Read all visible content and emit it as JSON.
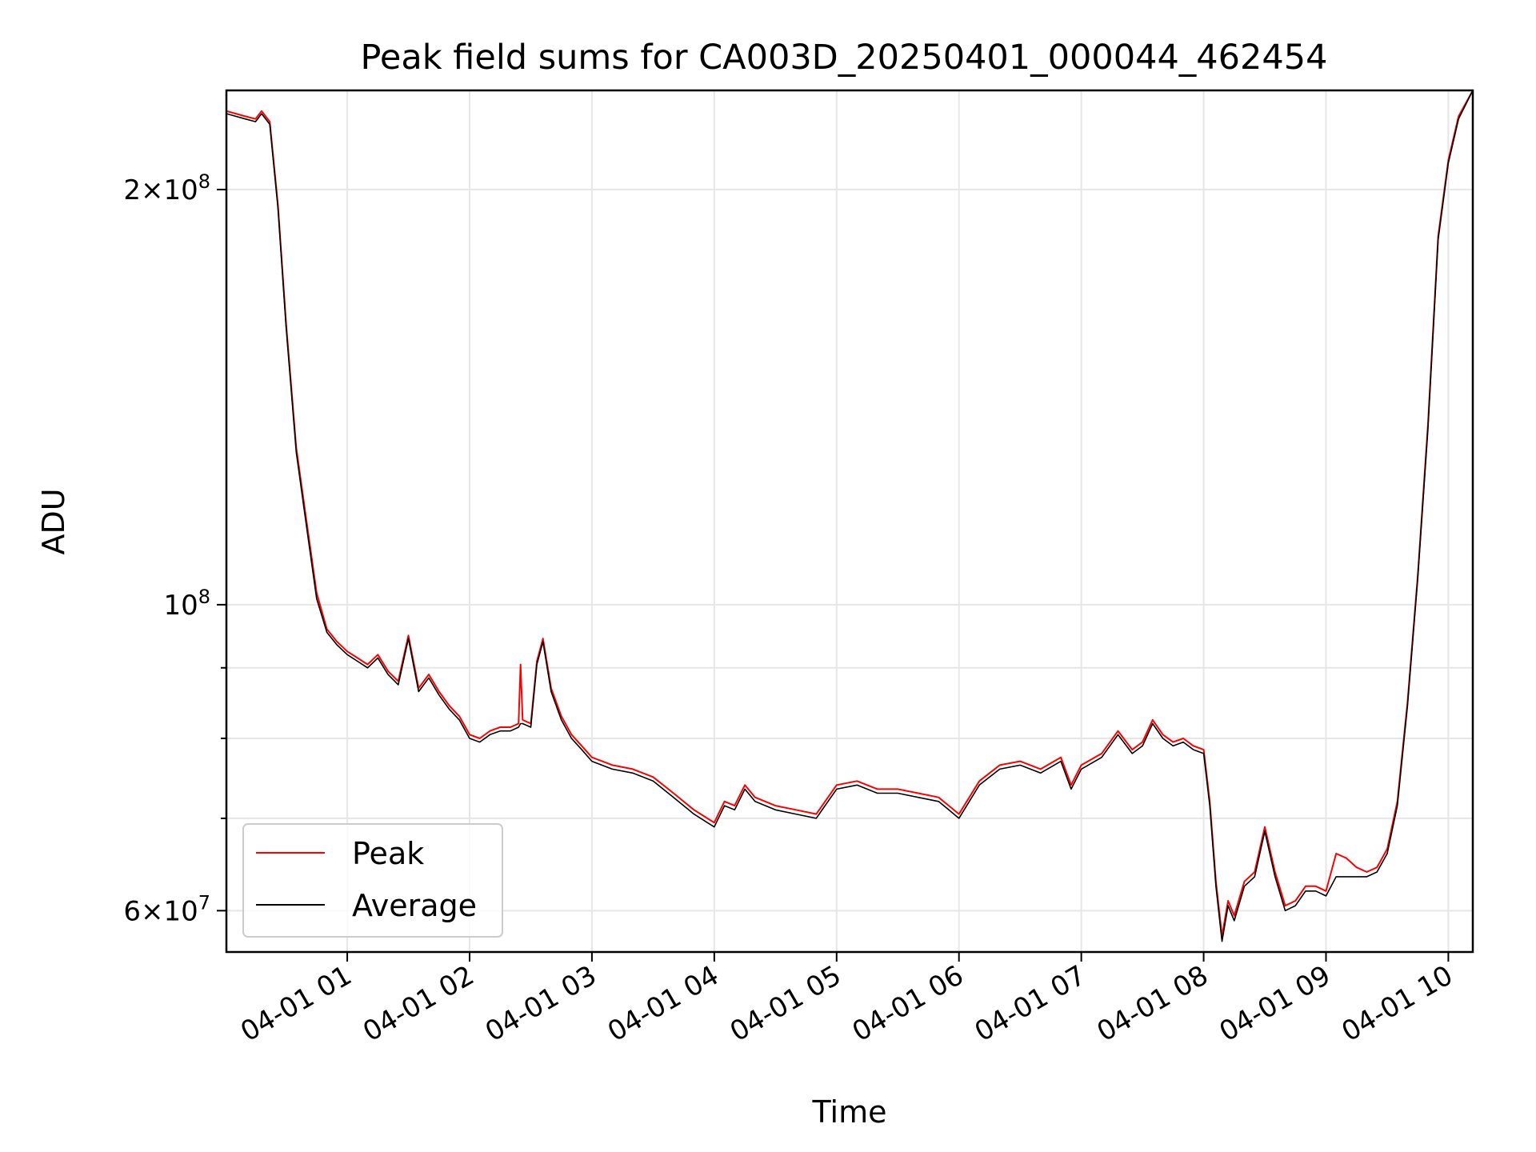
{
  "chart_data": {
    "type": "line",
    "title": "Peak field sums for CA003D_20250401_000044_462454",
    "xlabel": "Time",
    "ylabel": "ADU",
    "yscale": "log",
    "ylim": [
      56000000,
      236000000
    ],
    "xlim": [
      "2025-04-01 00:00:44",
      "2025-04-01 10:12:00"
    ],
    "grid": true,
    "legend_position": "lower-left",
    "x_ticks": [
      "2025-04-01 01:00",
      "2025-04-01 02:00",
      "2025-04-01 03:00",
      "2025-04-01 04:00",
      "2025-04-01 05:00",
      "2025-04-01 06:00",
      "2025-04-01 07:00",
      "2025-04-01 08:00",
      "2025-04-01 09:00",
      "2025-04-01 10:00"
    ],
    "x_tick_labels": [
      "04-01 01",
      "04-01 02",
      "04-01 03",
      "04-01 04",
      "04-01 05",
      "04-01 06",
      "04-01 07",
      "04-01 08",
      "04-01 09",
      "04-01 10"
    ],
    "y_major_ticks": [
      {
        "value": 60000000,
        "mantissa": "6",
        "exp": "7"
      },
      {
        "value": 100000000,
        "mantissa": "",
        "exp": "8"
      },
      {
        "value": 200000000,
        "mantissa": "2",
        "exp": "8"
      }
    ],
    "y_minor_ticks": [
      70000000,
      80000000,
      90000000
    ],
    "series": [
      {
        "name": "Peak",
        "color": "#ff0000",
        "x": [
          "2025-04-01 00:00:44",
          "2025-04-01 00:10",
          "2025-04-01 00:15",
          "2025-04-01 00:18",
          "2025-04-01 00:22",
          "2025-04-01 00:26",
          "2025-04-01 00:30",
          "2025-04-01 00:35",
          "2025-04-01 00:40",
          "2025-04-01 00:45",
          "2025-04-01 00:50",
          "2025-04-01 00:55",
          "2025-04-01 01:00",
          "2025-04-01 01:05",
          "2025-04-01 01:10",
          "2025-04-01 01:15",
          "2025-04-01 01:20",
          "2025-04-01 01:25",
          "2025-04-01 01:30",
          "2025-04-01 01:35",
          "2025-04-01 01:40",
          "2025-04-01 01:45",
          "2025-04-01 01:50",
          "2025-04-01 01:55",
          "2025-04-01 02:00",
          "2025-04-01 02:05",
          "2025-04-01 02:10",
          "2025-04-01 02:15",
          "2025-04-01 02:20",
          "2025-04-01 02:24",
          "2025-04-01 02:25",
          "2025-04-01 02:26",
          "2025-04-01 02:30",
          "2025-04-01 02:33",
          "2025-04-01 02:36",
          "2025-04-01 02:40",
          "2025-04-01 02:45",
          "2025-04-01 02:50",
          "2025-04-01 02:55",
          "2025-04-01 03:00",
          "2025-04-01 03:10",
          "2025-04-01 03:20",
          "2025-04-01 03:30",
          "2025-04-01 03:40",
          "2025-04-01 03:50",
          "2025-04-01 04:00",
          "2025-04-01 04:05",
          "2025-04-01 04:10",
          "2025-04-01 04:15",
          "2025-04-01 04:20",
          "2025-04-01 04:30",
          "2025-04-01 04:40",
          "2025-04-01 04:50",
          "2025-04-01 05:00",
          "2025-04-01 05:10",
          "2025-04-01 05:20",
          "2025-04-01 05:30",
          "2025-04-01 05:40",
          "2025-04-01 05:50",
          "2025-04-01 05:55",
          "2025-04-01 06:00",
          "2025-04-01 06:10",
          "2025-04-01 06:20",
          "2025-04-01 06:30",
          "2025-04-01 06:40",
          "2025-04-01 06:50",
          "2025-04-01 06:55",
          "2025-04-01 07:00",
          "2025-04-01 07:10",
          "2025-04-01 07:18",
          "2025-04-01 07:25",
          "2025-04-01 07:30",
          "2025-04-01 07:35",
          "2025-04-01 07:40",
          "2025-04-01 07:45",
          "2025-04-01 07:50",
          "2025-04-01 07:55",
          "2025-04-01 08:00",
          "2025-04-01 08:03",
          "2025-04-01 08:06",
          "2025-04-01 08:09",
          "2025-04-01 08:12",
          "2025-04-01 08:15",
          "2025-04-01 08:20",
          "2025-04-01 08:25",
          "2025-04-01 08:30",
          "2025-04-01 08:35",
          "2025-04-01 08:40",
          "2025-04-01 08:45",
          "2025-04-01 08:50",
          "2025-04-01 08:55",
          "2025-04-01 09:00",
          "2025-04-01 09:05",
          "2025-04-01 09:10",
          "2025-04-01 09:15",
          "2025-04-01 09:20",
          "2025-04-01 09:25",
          "2025-04-01 09:30",
          "2025-04-01 09:35",
          "2025-04-01 09:40",
          "2025-04-01 09:45",
          "2025-04-01 09:50",
          "2025-04-01 09:55",
          "2025-04-01 10:00",
          "2025-04-01 10:05",
          "2025-04-01 10:12"
        ],
        "values": [
          228000000,
          226000000,
          225000000,
          228000000,
          224000000,
          195000000,
          160000000,
          130000000,
          115000000,
          102000000,
          96000000,
          94000000,
          92500000,
          91500000,
          90500000,
          92000000,
          89500000,
          88000000,
          95000000,
          87000000,
          89000000,
          86500000,
          84500000,
          83000000,
          80500000,
          80000000,
          81000000,
          81500000,
          81500000,
          82000000,
          90500000,
          82500000,
          82000000,
          91000000,
          94500000,
          87000000,
          83000000,
          80500000,
          79000000,
          77500000,
          76500000,
          76000000,
          75000000,
          73000000,
          71000000,
          69500000,
          72000000,
          71500000,
          74000000,
          72500000,
          71500000,
          71000000,
          70500000,
          74000000,
          74500000,
          73500000,
          73500000,
          73000000,
          72500000,
          71500000,
          70500000,
          74500000,
          76500000,
          77000000,
          76000000,
          77500000,
          74000000,
          76500000,
          78000000,
          81000000,
          78500000,
          79500000,
          82500000,
          80500000,
          79500000,
          80000000,
          79000000,
          78500000,
          72000000,
          63000000,
          57500000,
          61000000,
          59500000,
          63000000,
          64000000,
          69000000,
          64000000,
          60500000,
          61000000,
          62500000,
          62500000,
          62000000,
          66000000,
          65500000,
          64500000,
          64000000,
          64500000,
          66500000,
          72000000,
          85000000,
          105000000,
          135000000,
          185000000,
          210000000,
          226000000,
          236000000
        ]
      },
      {
        "name": "Average",
        "color": "#000000",
        "x": [
          "2025-04-01 00:00:44",
          "2025-04-01 00:10",
          "2025-04-01 00:15",
          "2025-04-01 00:18",
          "2025-04-01 00:22",
          "2025-04-01 00:26",
          "2025-04-01 00:30",
          "2025-04-01 00:35",
          "2025-04-01 00:40",
          "2025-04-01 00:45",
          "2025-04-01 00:50",
          "2025-04-01 00:55",
          "2025-04-01 01:00",
          "2025-04-01 01:05",
          "2025-04-01 01:10",
          "2025-04-01 01:15",
          "2025-04-01 01:20",
          "2025-04-01 01:25",
          "2025-04-01 01:30",
          "2025-04-01 01:35",
          "2025-04-01 01:40",
          "2025-04-01 01:45",
          "2025-04-01 01:50",
          "2025-04-01 01:55",
          "2025-04-01 02:00",
          "2025-04-01 02:05",
          "2025-04-01 02:10",
          "2025-04-01 02:15",
          "2025-04-01 02:20",
          "2025-04-01 02:24",
          "2025-04-01 02:25",
          "2025-04-01 02:26",
          "2025-04-01 02:30",
          "2025-04-01 02:33",
          "2025-04-01 02:36",
          "2025-04-01 02:40",
          "2025-04-01 02:45",
          "2025-04-01 02:50",
          "2025-04-01 02:55",
          "2025-04-01 03:00",
          "2025-04-01 03:10",
          "2025-04-01 03:20",
          "2025-04-01 03:30",
          "2025-04-01 03:40",
          "2025-04-01 03:50",
          "2025-04-01 04:00",
          "2025-04-01 04:05",
          "2025-04-01 04:10",
          "2025-04-01 04:15",
          "2025-04-01 04:20",
          "2025-04-01 04:30",
          "2025-04-01 04:40",
          "2025-04-01 04:50",
          "2025-04-01 05:00",
          "2025-04-01 05:10",
          "2025-04-01 05:20",
          "2025-04-01 05:30",
          "2025-04-01 05:40",
          "2025-04-01 05:50",
          "2025-04-01 05:55",
          "2025-04-01 06:00",
          "2025-04-01 06:10",
          "2025-04-01 06:20",
          "2025-04-01 06:30",
          "2025-04-01 06:40",
          "2025-04-01 06:50",
          "2025-04-01 06:55",
          "2025-04-01 07:00",
          "2025-04-01 07:10",
          "2025-04-01 07:18",
          "2025-04-01 07:25",
          "2025-04-01 07:30",
          "2025-04-01 07:35",
          "2025-04-01 07:40",
          "2025-04-01 07:45",
          "2025-04-01 07:50",
          "2025-04-01 07:55",
          "2025-04-01 08:00",
          "2025-04-01 08:03",
          "2025-04-01 08:06",
          "2025-04-01 08:09",
          "2025-04-01 08:12",
          "2025-04-01 08:15",
          "2025-04-01 08:20",
          "2025-04-01 08:25",
          "2025-04-01 08:30",
          "2025-04-01 08:35",
          "2025-04-01 08:40",
          "2025-04-01 08:45",
          "2025-04-01 08:50",
          "2025-04-01 08:55",
          "2025-04-01 09:00",
          "2025-04-01 09:05",
          "2025-04-01 09:10",
          "2025-04-01 09:15",
          "2025-04-01 09:20",
          "2025-04-01 09:25",
          "2025-04-01 09:30",
          "2025-04-01 09:35",
          "2025-04-01 09:40",
          "2025-04-01 09:45",
          "2025-04-01 09:50",
          "2025-04-01 09:55",
          "2025-04-01 10:00",
          "2025-04-01 10:05",
          "2025-04-01 10:12"
        ],
        "values": [
          227000000,
          225000000,
          224000000,
          227000000,
          223000000,
          194000000,
          159000000,
          129000000,
          114000000,
          101000000,
          95500000,
          93500000,
          92000000,
          91000000,
          90000000,
          91500000,
          89000000,
          87500000,
          94500000,
          86500000,
          88500000,
          86000000,
          84000000,
          82500000,
          80000000,
          79500000,
          80500000,
          81000000,
          81000000,
          81500000,
          82000000,
          82000000,
          81500000,
          90500000,
          94000000,
          86500000,
          82500000,
          80000000,
          78500000,
          77000000,
          76000000,
          75500000,
          74500000,
          72500000,
          70500000,
          69000000,
          71500000,
          71000000,
          73500000,
          72000000,
          71000000,
          70500000,
          70000000,
          73500000,
          74000000,
          73000000,
          73000000,
          72500000,
          72000000,
          71000000,
          70000000,
          74000000,
          76000000,
          76500000,
          75500000,
          77000000,
          73500000,
          76000000,
          77500000,
          80500000,
          78000000,
          79000000,
          82000000,
          80000000,
          79000000,
          79500000,
          78500000,
          78000000,
          71500000,
          62500000,
          57000000,
          60500000,
          59000000,
          62500000,
          63500000,
          68500000,
          63500000,
          60000000,
          60500000,
          62000000,
          62000000,
          61500000,
          63500000,
          63500000,
          63500000,
          63500000,
          64000000,
          66000000,
          71500000,
          84500000,
          104500000,
          134000000,
          184000000,
          209000000,
          225000000,
          236000000
        ]
      }
    ]
  }
}
